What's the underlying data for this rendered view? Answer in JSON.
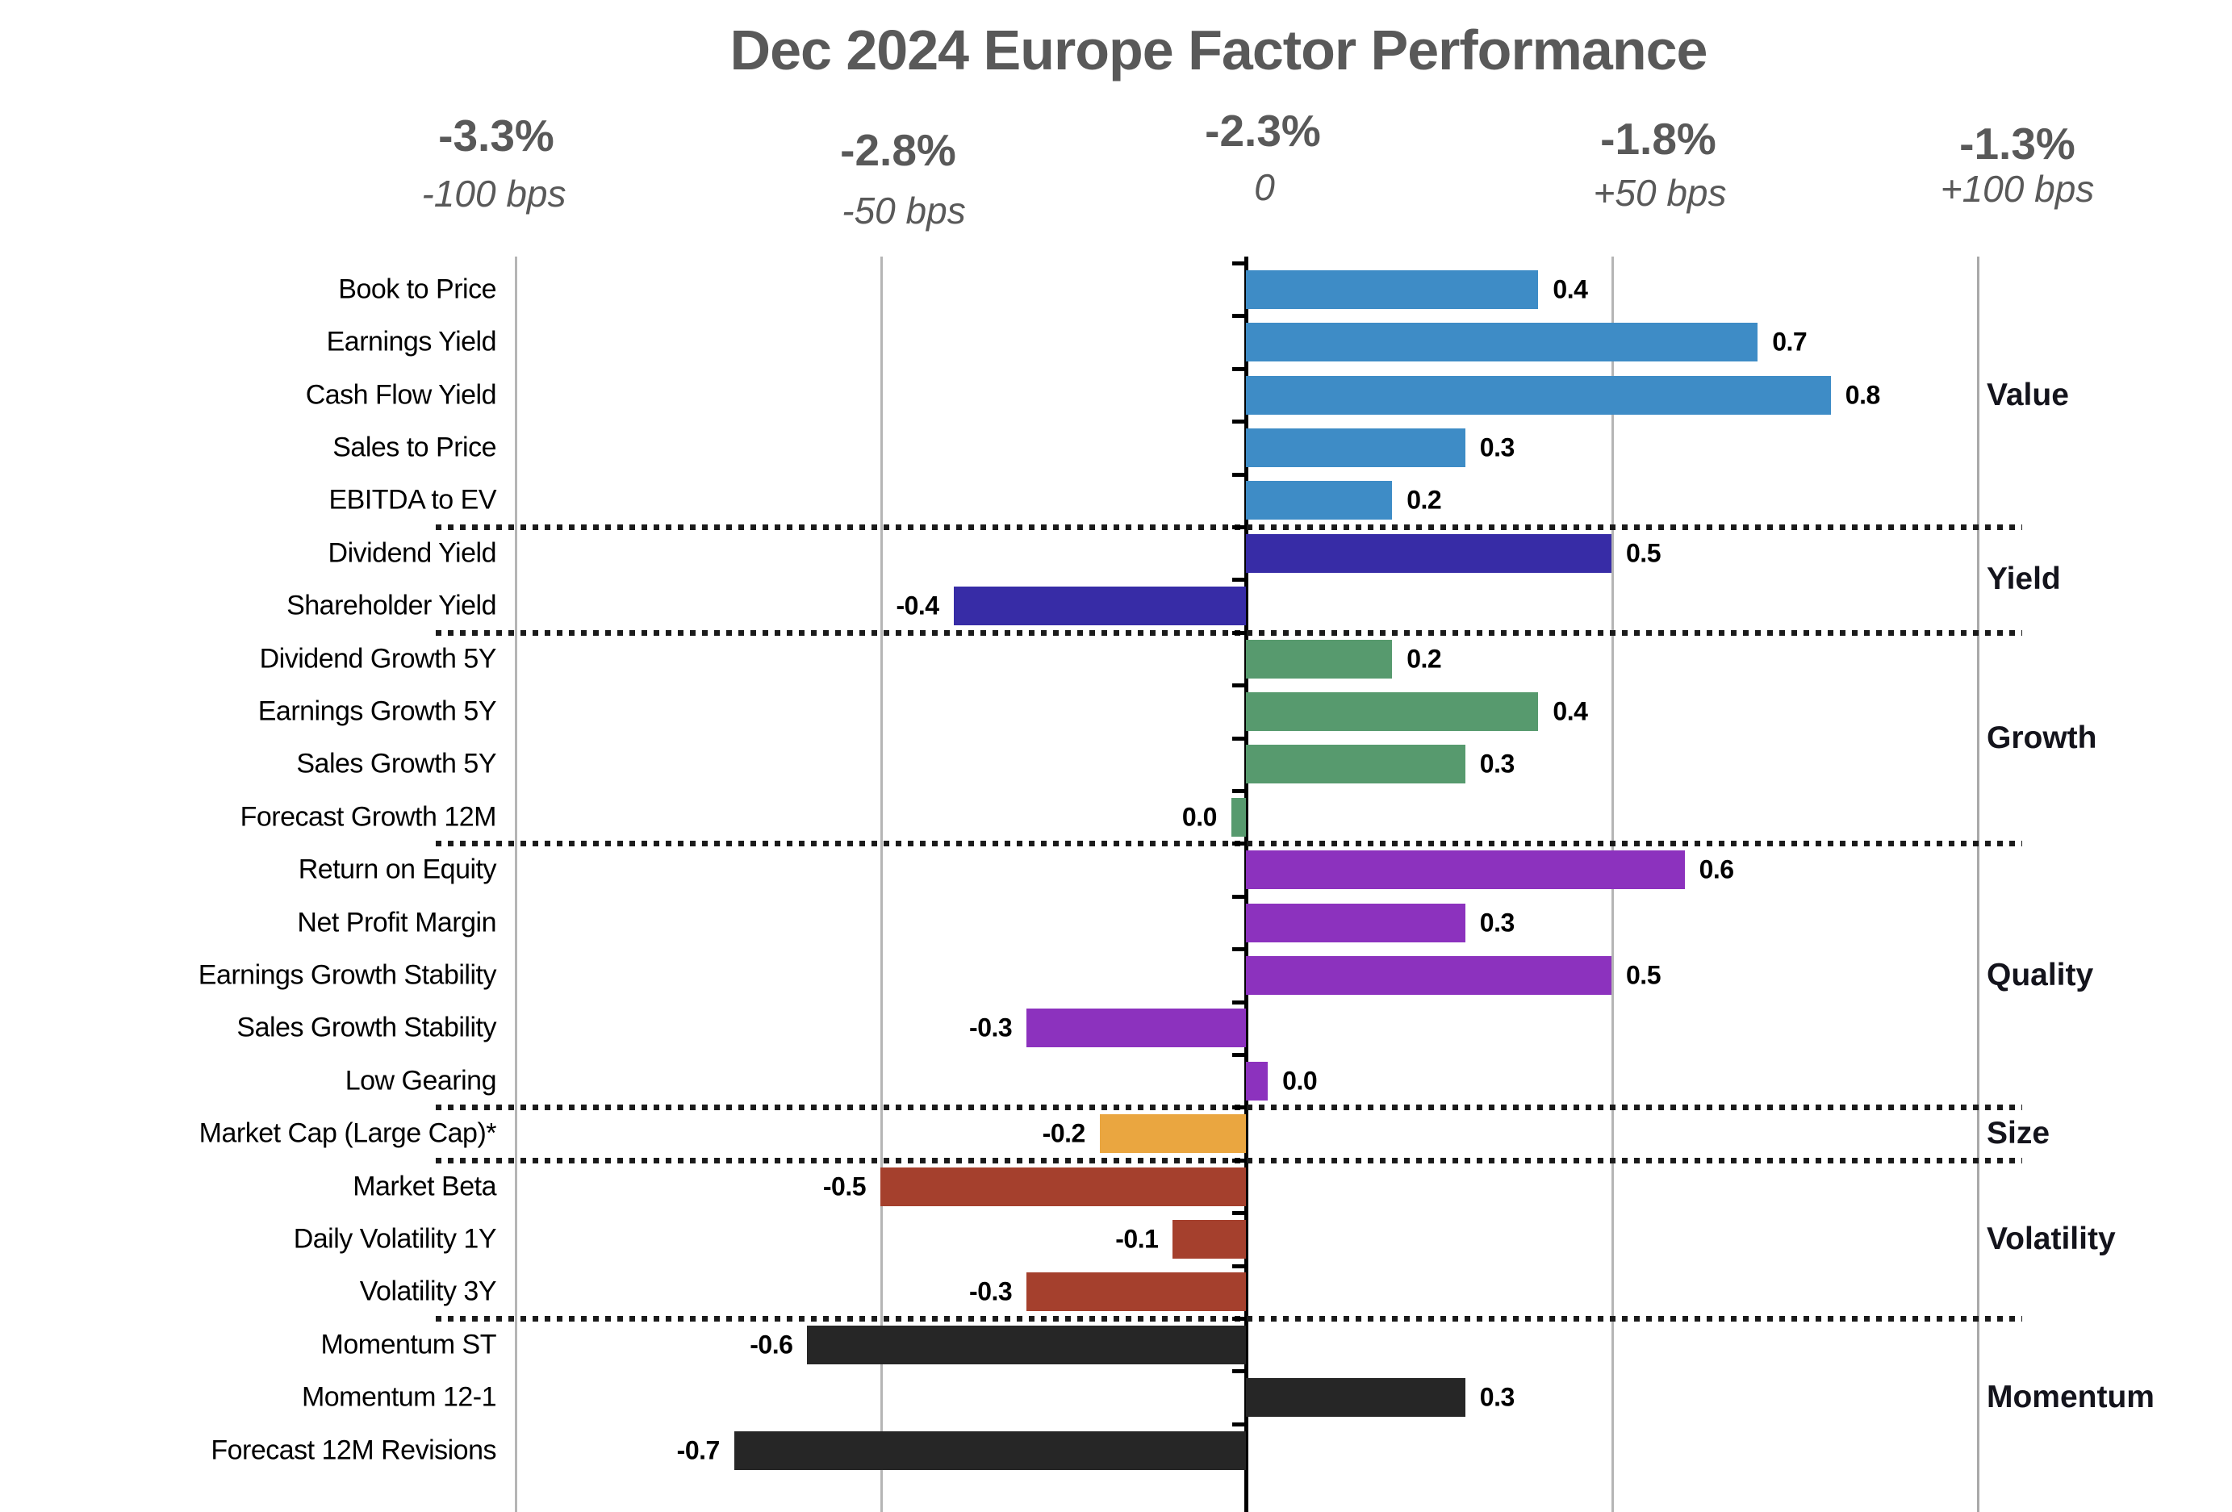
{
  "title": "Dec 2024 Europe Factor Performance",
  "axis_top": {
    "ticks": [
      {
        "percent": "-3.3%",
        "bps": "-100 bps"
      },
      {
        "percent": "-2.8%",
        "bps": "-50 bps"
      },
      {
        "percent": "-2.3%",
        "bps": "0"
      },
      {
        "percent": "-1.8%",
        "bps": "+50 bps"
      },
      {
        "percent": "-1.3%",
        "bps": "+100 bps"
      }
    ]
  },
  "chart_data": {
    "type": "bar",
    "orientation": "horizontal",
    "value_unit": "percent (100 bps = 1.0)",
    "xlim": [
      -1.0,
      1.0
    ],
    "gridlines_bps": [
      -100,
      -50,
      0,
      50,
      100
    ],
    "grid": "vertical gridlines, dotted horizontal group separators",
    "groups": [
      {
        "name": "Value",
        "color": "#3E8CC6",
        "factors": [
          {
            "label": "Book to Price",
            "value": 0.4,
            "display": "0.4"
          },
          {
            "label": "Earnings Yield",
            "value": 0.7,
            "display": "0.7"
          },
          {
            "label": "Cash Flow Yield",
            "value": 0.8,
            "display": "0.8"
          },
          {
            "label": "Sales to Price",
            "value": 0.3,
            "display": "0.3"
          },
          {
            "label": "EBITDA to EV",
            "value": 0.2,
            "display": "0.2"
          }
        ]
      },
      {
        "name": "Yield",
        "color": "#372CA6",
        "factors": [
          {
            "label": "Dividend Yield",
            "value": 0.5,
            "display": "0.5"
          },
          {
            "label": "Shareholder Yield",
            "value": -0.4,
            "display": "-0.4"
          }
        ]
      },
      {
        "name": "Growth",
        "color": "#579A6E",
        "factors": [
          {
            "label": "Dividend Growth 5Y",
            "value": 0.2,
            "display": "0.2"
          },
          {
            "label": "Earnings Growth 5Y",
            "value": 0.4,
            "display": "0.4"
          },
          {
            "label": "Sales Growth 5Y",
            "value": 0.3,
            "display": "0.3"
          },
          {
            "label": "Forecast Growth 12M",
            "value": -0.02,
            "display": "0.0"
          }
        ]
      },
      {
        "name": "Quality",
        "color": "#8C32BE",
        "factors": [
          {
            "label": "Return on Equity",
            "value": 0.6,
            "display": "0.6"
          },
          {
            "label": "Net Profit Margin",
            "value": 0.3,
            "display": "0.3"
          },
          {
            "label": "Earnings Growth Stability",
            "value": 0.5,
            "display": "0.5"
          },
          {
            "label": "Sales Growth Stability",
            "value": -0.3,
            "display": "-0.3"
          },
          {
            "label": "Low Gearing",
            "value": 0.03,
            "display": "0.0"
          }
        ]
      },
      {
        "name": "Size",
        "color": "#EAA640",
        "factors": [
          {
            "label": "Market Cap (Large Cap)*",
            "value": -0.2,
            "display": "-0.2"
          }
        ]
      },
      {
        "name": "Volatility",
        "color": "#A5402D",
        "factors": [
          {
            "label": "Market Beta",
            "value": -0.5,
            "display": "-0.5"
          },
          {
            "label": "Daily Volatility 1Y",
            "value": -0.1,
            "display": "-0.1"
          },
          {
            "label": "Volatility 3Y",
            "value": -0.3,
            "display": "-0.3"
          }
        ]
      },
      {
        "name": "Momentum",
        "color": "#262626",
        "factors": [
          {
            "label": "Momentum ST",
            "value": -0.6,
            "display": "-0.6"
          },
          {
            "label": "Momentum 12-1",
            "value": 0.3,
            "display": "0.3"
          },
          {
            "label": "Forecast 12M Revisions",
            "value": -0.7,
            "display": "-0.7"
          }
        ]
      }
    ]
  },
  "colors": {
    "title_text": "#595959",
    "axis_text": "#595959",
    "factor_label_text": "#000000",
    "category_label_text": "#14141c",
    "gridline": "#b5b5b5",
    "zero_axis": "#000000",
    "separator_dots": "#1b1b1b"
  }
}
